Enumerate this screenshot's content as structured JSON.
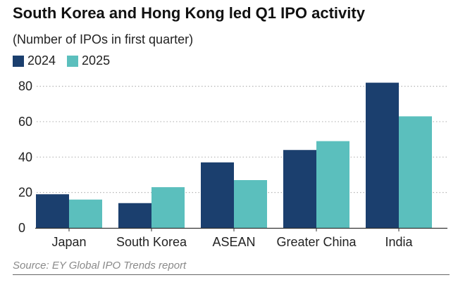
{
  "title": "South Korea and Hong Kong led Q1 IPO activity",
  "subtitle": "(Number of IPOs in first quarter)",
  "source": "Source: EY Global IPO Trends report",
  "colors": {
    "2024": "#1b3f6e",
    "2025": "#5bbfbd",
    "grid": "#b5b5b5",
    "axis": "#333333"
  },
  "chart_data": {
    "type": "bar",
    "categories": [
      "Japan",
      "South Korea",
      "ASEAN",
      "Greater China",
      "India"
    ],
    "series": [
      {
        "name": "2024",
        "values": [
          19,
          14,
          37,
          44,
          82
        ]
      },
      {
        "name": "2025",
        "values": [
          16,
          23,
          27,
          49,
          63
        ]
      }
    ],
    "yticks": [
      0,
      20,
      40,
      60,
      80
    ],
    "ylim": [
      0,
      85
    ],
    "grid": true,
    "legend": "top-left"
  }
}
